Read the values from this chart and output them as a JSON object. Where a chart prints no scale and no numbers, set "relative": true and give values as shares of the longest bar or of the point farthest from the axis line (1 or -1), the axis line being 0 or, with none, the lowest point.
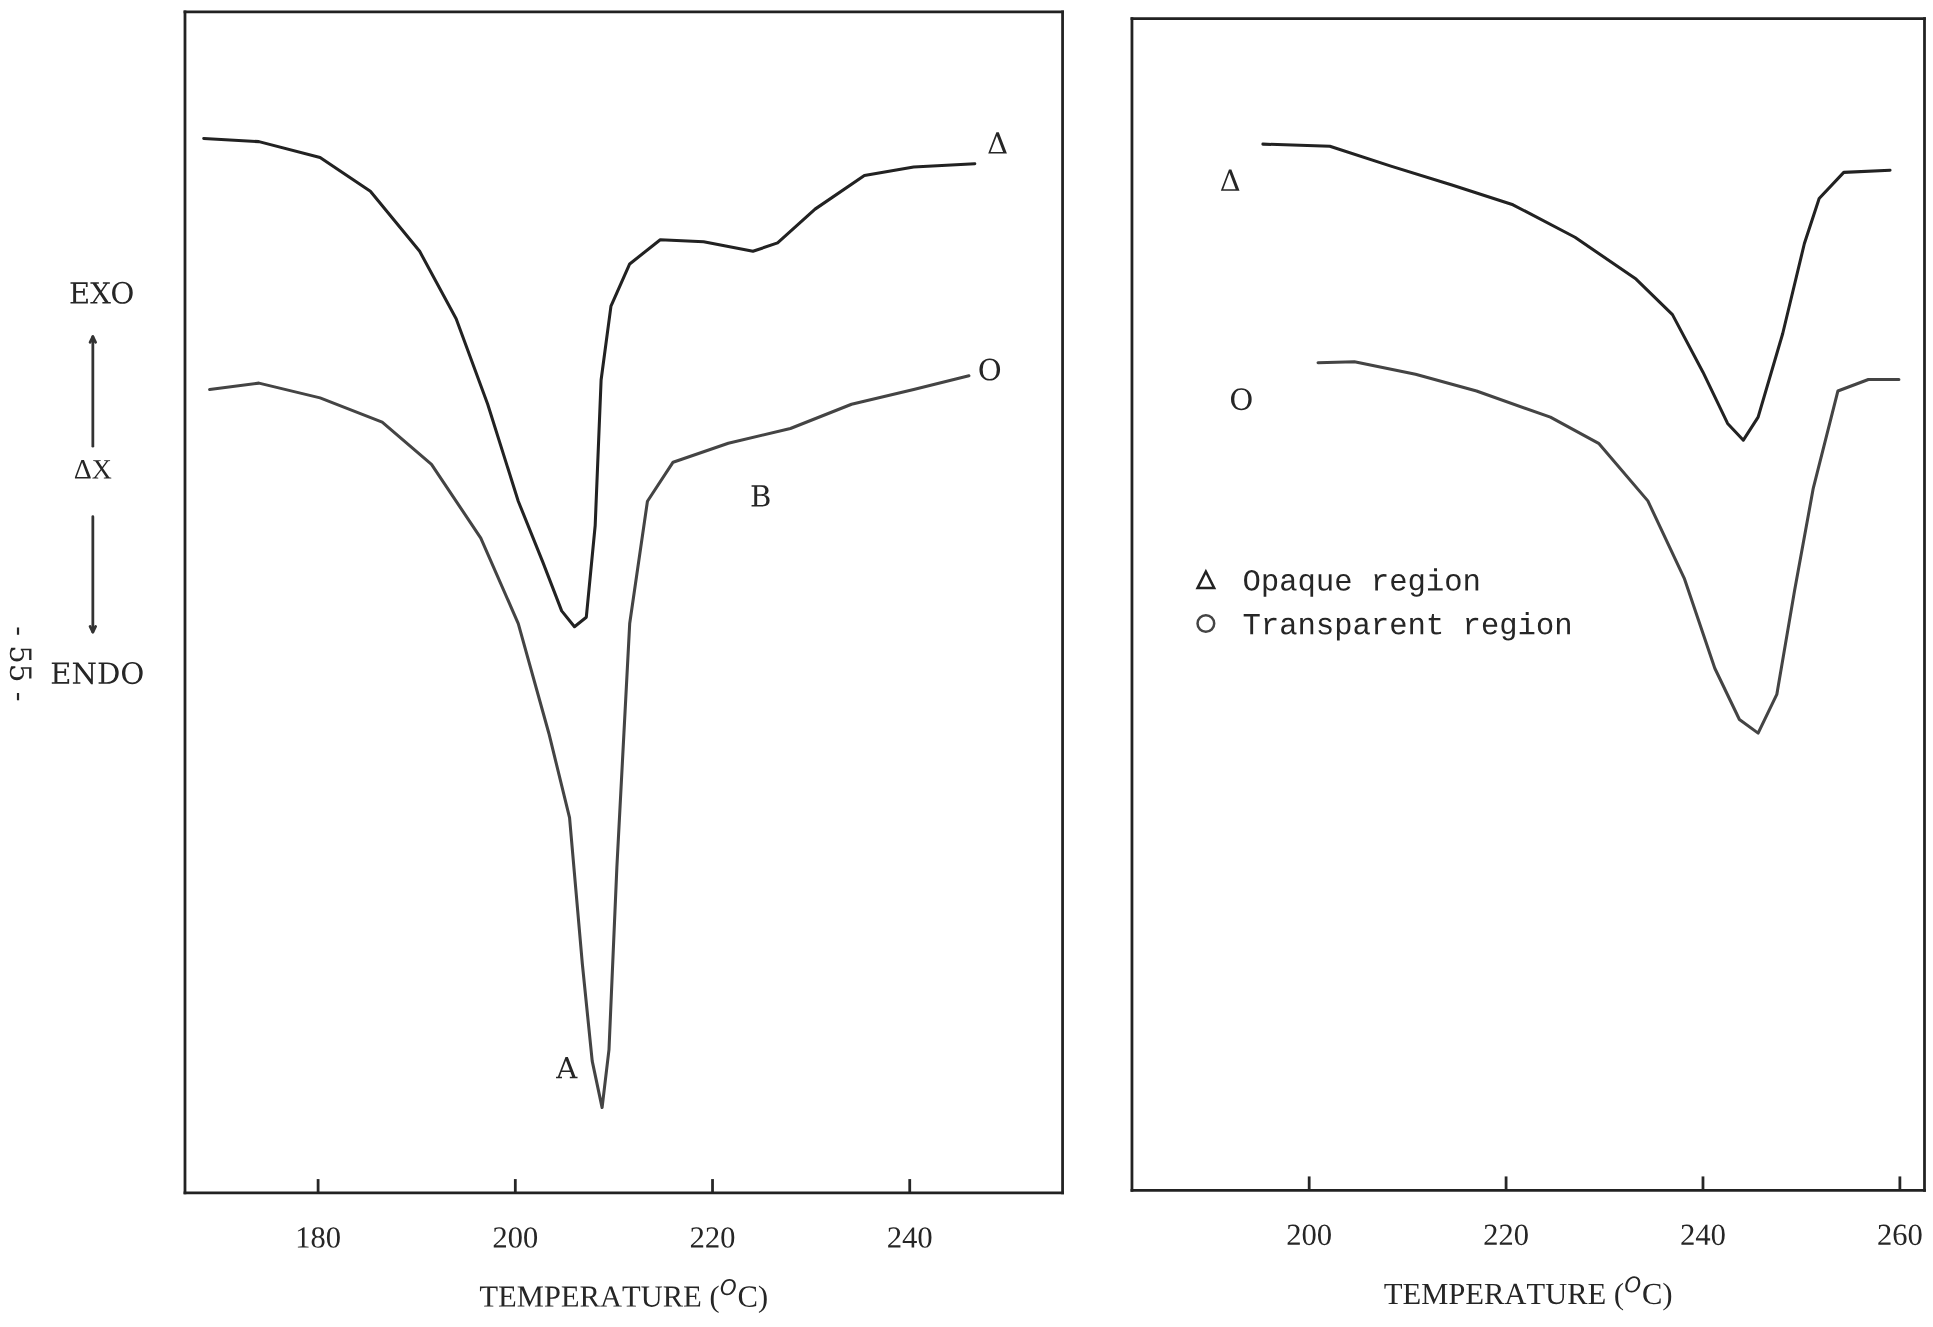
{
  "chart_data": [
    {
      "type": "line",
      "xlabel": "TEMPERATURE ($^{O}$C)",
      "ylabel": "ΔX",
      "relative": true,
      "xlim": [
        166.5,
        255.5
      ],
      "xticks": [
        180,
        200,
        220,
        240
      ],
      "tick_labels": "x",
      "grid": false,
      "legend": false,
      "series": [
        {
          "color": "#222222",
          "x": [
            168.4,
            174,
            180.2,
            185.3,
            190.3,
            194,
            197.2,
            200.3,
            202.8,
            204.7,
            206,
            207.2,
            208.1,
            208.7,
            209.7,
            211.6,
            214.7,
            219.1,
            224.1,
            226.6,
            230.4,
            235.4,
            240.4,
            246.6
          ],
          "values": [
            1.0,
            0.997,
            0.982,
            0.95,
            0.893,
            0.829,
            0.748,
            0.656,
            0.598,
            0.552,
            0.537,
            0.546,
            0.633,
            0.771,
            0.841,
            0.881,
            0.904,
            0.902,
            0.893,
            0.901,
            0.933,
            0.965,
            0.973,
            0.976
          ]
        },
        {
          "color": "#444444",
          "x": [
            169,
            174,
            180.2,
            186.5,
            191.5,
            196.5,
            200.3,
            203.4,
            205.5,
            206.8,
            207.8,
            208.8,
            209.5,
            210.3,
            211.6,
            213.4,
            216,
            221.6,
            227.9,
            234.1,
            240.4,
            246
          ],
          "values": [
            0.762,
            0.768,
            0.754,
            0.731,
            0.691,
            0.621,
            0.54,
            0.436,
            0.356,
            0.217,
            0.125,
            0.081,
            0.136,
            0.309,
            0.54,
            0.656,
            0.693,
            0.711,
            0.725,
            0.748,
            0.762,
            0.775
          ]
        }
      ],
      "annotations": [
        "EXO",
        "ENDO",
        "- 55 -",
        "Δ",
        "O",
        "A",
        "B"
      ]
    },
    {
      "type": "line",
      "xlabel": "TEMPERATURE ($^{O}$C)",
      "relative": true,
      "xlim": [
        182,
        262.5
      ],
      "xticks": [
        200,
        220,
        240,
        260
      ],
      "tick_labels": "x",
      "grid": false,
      "legend": "left",
      "series": [
        {
          "name": "Opaque region",
          "color": "#222222",
          "x": [
            195.3,
            202.1,
            208.3,
            214.5,
            220.7,
            227,
            233.2,
            236.9,
            240,
            242.5,
            244.1,
            245.6,
            248.1,
            250.3,
            251.8,
            254.3,
            259
          ],
          "values": [
            1.0,
            0.998,
            0.979,
            0.961,
            0.942,
            0.911,
            0.871,
            0.837,
            0.782,
            0.733,
            0.717,
            0.739,
            0.819,
            0.905,
            0.948,
            0.973,
            0.975
          ]
        },
        {
          "name": "Transparent region",
          "color": "#444444",
          "x": [
            200.9,
            204.6,
            210.8,
            217,
            224.5,
            229.4,
            234.4,
            238.1,
            241.2,
            243.7,
            245.6,
            247.5,
            249.3,
            251.2,
            253.7,
            256.8,
            259.9
          ],
          "values": [
            0.791,
            0.792,
            0.78,
            0.764,
            0.739,
            0.714,
            0.659,
            0.585,
            0.499,
            0.45,
            0.437,
            0.474,
            0.573,
            0.671,
            0.764,
            0.775,
            0.775
          ]
        }
      ],
      "annotations": [
        "Δ",
        "O"
      ]
    }
  ]
}
